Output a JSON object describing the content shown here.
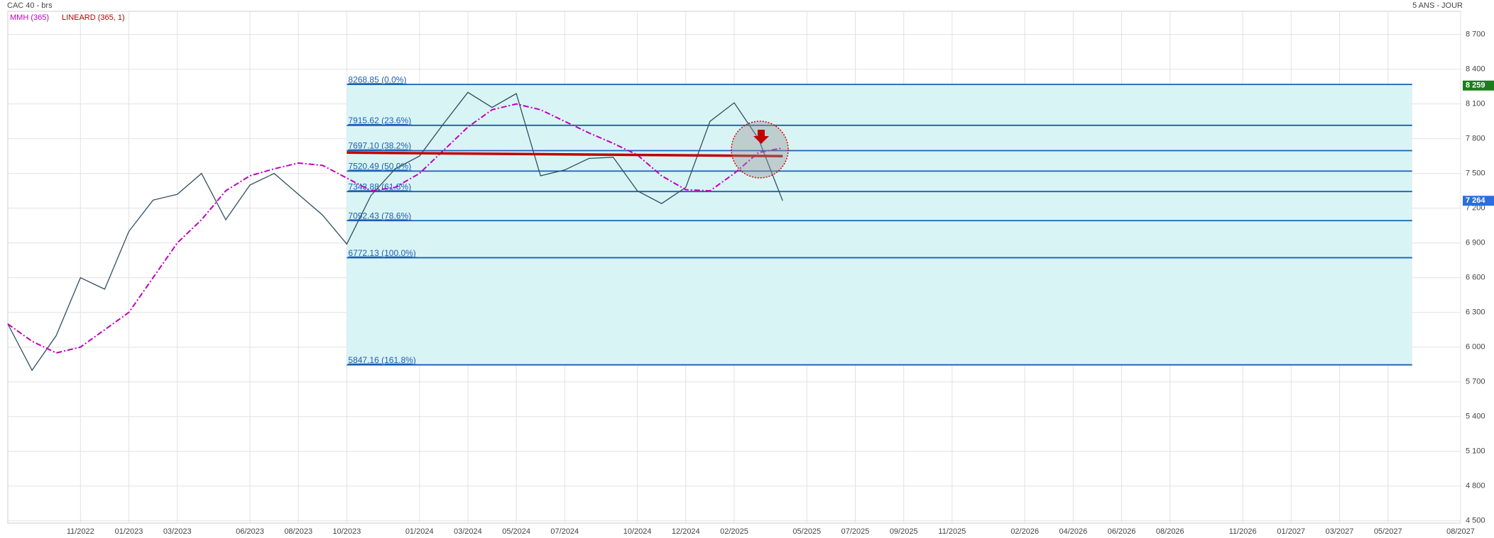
{
  "chart_data": {
    "type": "line",
    "title": "CAC 40 - brs",
    "period": "5 ANS - JOUR",
    "xlim": [
      "08/2022",
      "08/2027"
    ],
    "xticks": [
      "11/2022",
      "01/2023",
      "03/2023",
      "06/2023",
      "08/2023",
      "10/2023",
      "01/2024",
      "03/2024",
      "05/2024",
      "07/2024",
      "10/2024",
      "12/2024",
      "02/2025",
      "05/2025",
      "07/2025",
      "09/2025",
      "11/2025",
      "02/2026",
      "04/2026",
      "06/2026",
      "08/2026",
      "11/2026",
      "01/2027",
      "03/2027",
      "05/2027",
      "08/2027"
    ],
    "ylim": [
      4480,
      8900
    ],
    "yticks": [
      {
        "value": 4500,
        "label": "4 500"
      },
      {
        "value": 4800,
        "label": "4 800"
      },
      {
        "value": 5100,
        "label": "5 100"
      },
      {
        "value": 5400,
        "label": "5 400"
      },
      {
        "value": 5700,
        "label": "5 700"
      },
      {
        "value": 6000,
        "label": "6 000"
      },
      {
        "value": 6300,
        "label": "6 300"
      },
      {
        "value": 6600,
        "label": "6 600"
      },
      {
        "value": 6900,
        "label": "6 900"
      },
      {
        "value": 7200,
        "label": "7 200"
      },
      {
        "value": 7500,
        "label": "7 500"
      },
      {
        "value": 7800,
        "label": "7 800"
      },
      {
        "value": 8100,
        "label": "8 100"
      },
      {
        "value": 8400,
        "label": "8 400"
      },
      {
        "value": 8700,
        "label": "8 700"
      }
    ],
    "grid": true,
    "price": {
      "color": "#2f4f5f",
      "x": [
        "08/2022",
        "09/2022",
        "10/2022",
        "11/2022",
        "12/2022",
        "01/2023",
        "02/2023",
        "03/2023",
        "04/2023",
        "05/2023",
        "06/2023",
        "07/2023",
        "08/2023",
        "09/2023",
        "10/2023",
        "11/2023",
        "12/2023",
        "01/2024",
        "02/2024",
        "03/2024",
        "04/2024",
        "05/2024",
        "06/2024",
        "07/2024",
        "08/2024",
        "09/2024",
        "10/2024",
        "11/2024",
        "12/2024",
        "01/2025",
        "02/2025",
        "03/2025",
        "04/2025"
      ],
      "values": [
        6200,
        5800,
        6100,
        6600,
        6500,
        7000,
        7270,
        7320,
        7500,
        7100,
        7400,
        7500,
        7320,
        7140,
        6890,
        7310,
        7540,
        7650,
        7930,
        8200,
        8070,
        8190,
        7480,
        7530,
        7630,
        7640,
        7350,
        7240,
        7380,
        7950,
        8110,
        7800,
        7264
      ]
    },
    "series": [
      {
        "name": "MMH (365)",
        "color": "#c000c0",
        "x": [
          "08/2022",
          "09/2022",
          "10/2022",
          "11/2022",
          "12/2022",
          "01/2023",
          "02/2023",
          "03/2023",
          "04/2023",
          "05/2023",
          "06/2023",
          "07/2023",
          "08/2023",
          "09/2023",
          "10/2023",
          "11/2023",
          "12/2023",
          "01/2024",
          "02/2024",
          "03/2024",
          "04/2024",
          "05/2024",
          "06/2024",
          "07/2024",
          "08/2024",
          "09/2024",
          "10/2024",
          "11/2024",
          "12/2024",
          "01/2025",
          "02/2025",
          "03/2025",
          "04/2025"
        ],
        "values": [
          6200,
          6050,
          5950,
          6000,
          6150,
          6300,
          6600,
          6900,
          7100,
          7350,
          7480,
          7540,
          7590,
          7570,
          7460,
          7350,
          7380,
          7500,
          7700,
          7900,
          8050,
          8100,
          8050,
          7950,
          7850,
          7760,
          7660,
          7480,
          7360,
          7350,
          7500,
          7680,
          7720
        ]
      },
      {
        "name": "LINEARD (365, 1)",
        "color": "#c00000",
        "x": [
          "10/2023",
          "04/2025"
        ],
        "values": [
          7680,
          7650
        ]
      }
    ],
    "fib_x": [
      "10/2023",
      "06/2027"
    ],
    "fib_color": "#1a5fb4",
    "fib_levels": [
      {
        "value": 8268.85,
        "label": "8268.85  (0.0%)"
      },
      {
        "value": 7915.62,
        "label": "7915.62  (23.6%)"
      },
      {
        "value": 7697.1,
        "label": "7697.10  (38.2%)"
      },
      {
        "value": 7520.49,
        "label": "7520.49  (50.0%)"
      },
      {
        "value": 7343.88,
        "label": "7343.88  (61.8%)"
      },
      {
        "value": 7092.43,
        "label": "7092.43  (78.6%)"
      },
      {
        "value": 6772.13,
        "label": "6772.13  (100.0%)"
      },
      {
        "value": 5847.16,
        "label": "5847.16  (161.8%)"
      }
    ],
    "price_tags": [
      {
        "value": 8259,
        "label": "8 259",
        "color": "#1a7f1a"
      },
      {
        "value": 7264,
        "label": "7 264",
        "color": "#2a6fdb"
      }
    ]
  }
}
